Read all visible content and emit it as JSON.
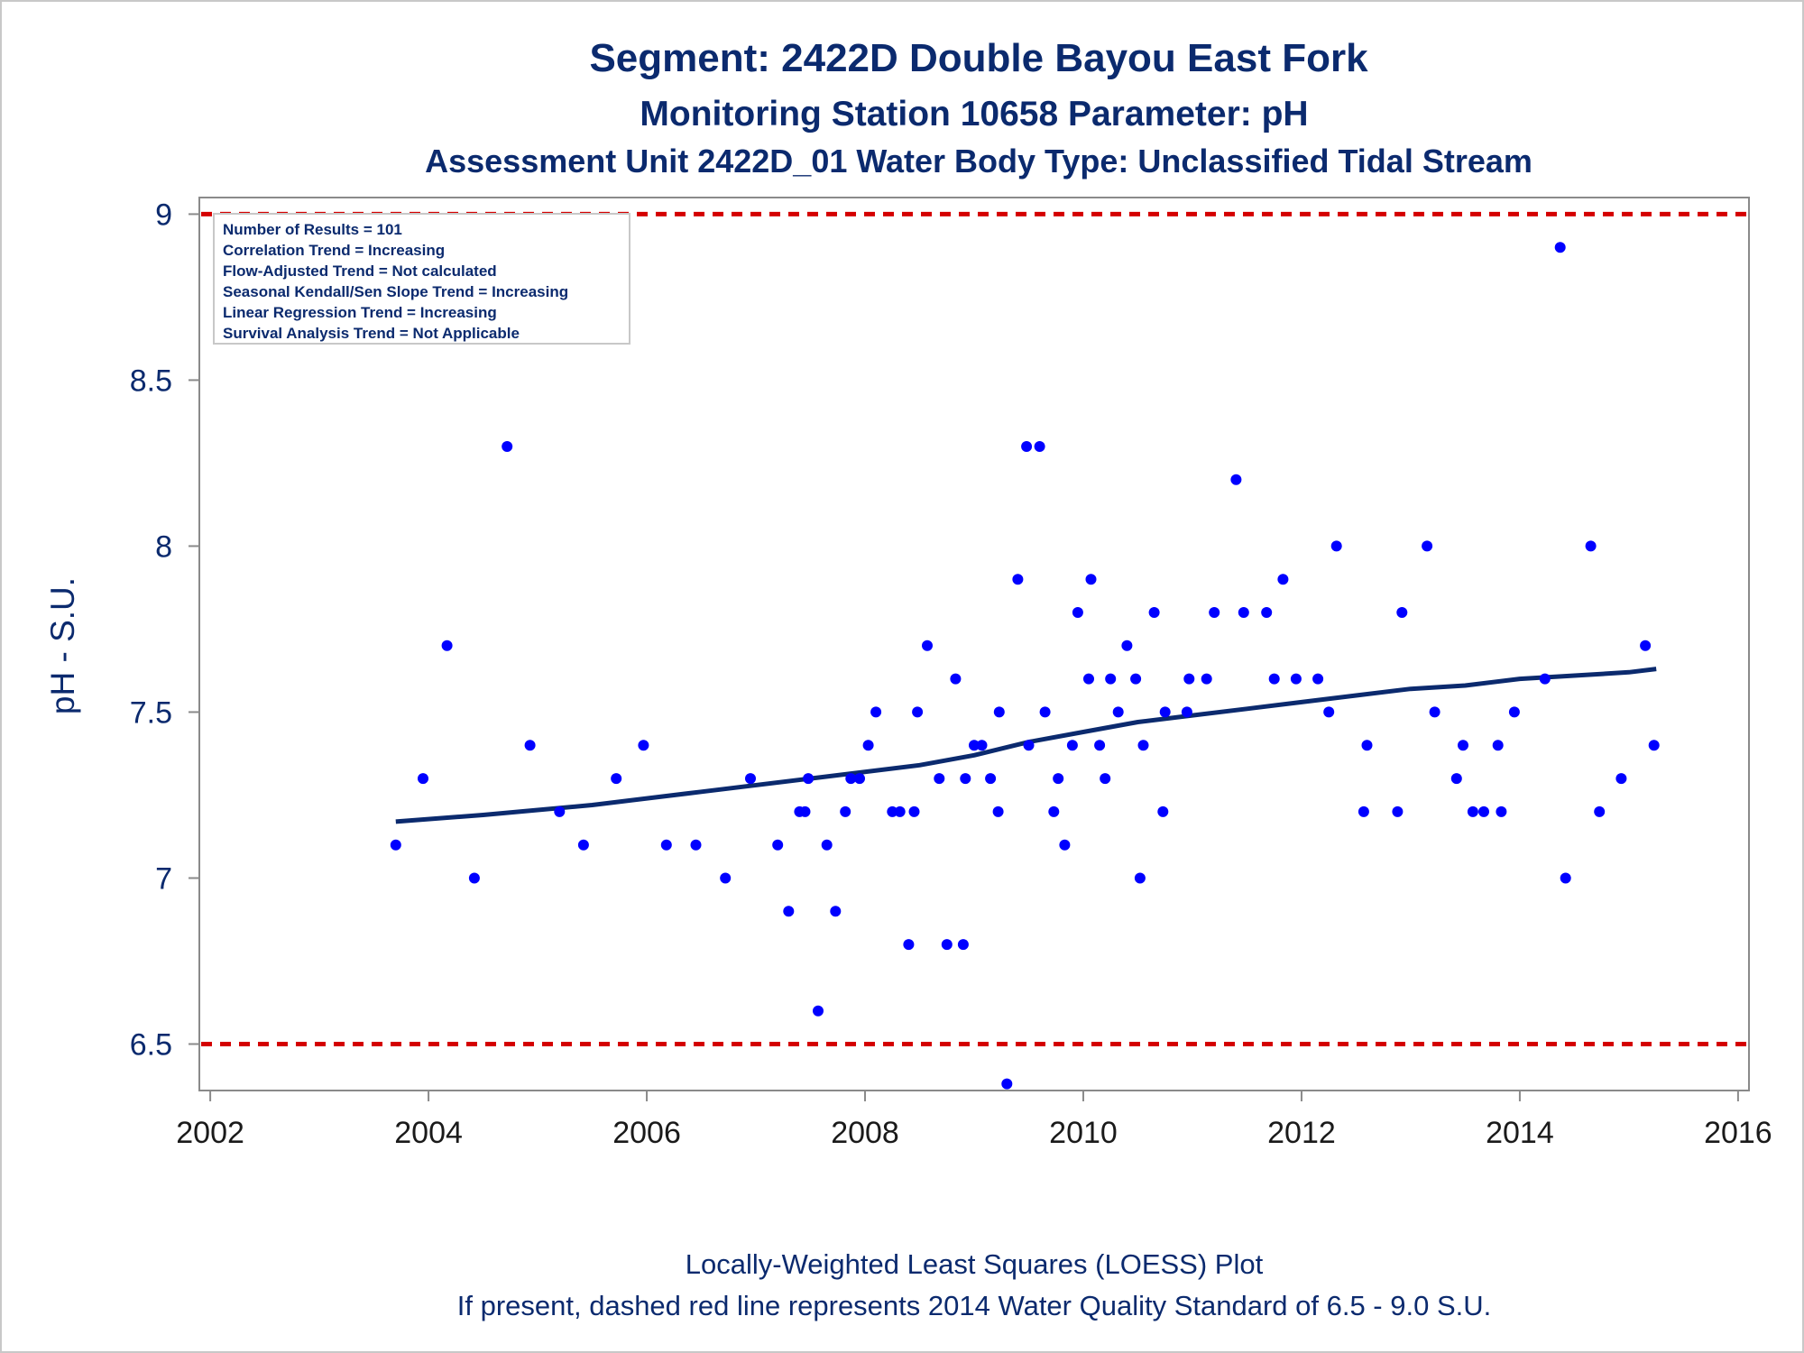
{
  "chart_data": {
    "type": "scatter",
    "title": "Segment: 2422D  Double Bayou East Fork",
    "subtitle": "Monitoring Station 10658 Parameter: pH",
    "subtitle2": "Assessment Unit 2422D_01   Water Body Type: Unclassified Tidal Stream",
    "ylabel": "pH - S.U.",
    "xlabel": "",
    "xlim": [
      2001.9,
      2016.1
    ],
    "ylim": [
      6.36,
      9.05
    ],
    "xticks": [
      2002,
      2004,
      2006,
      2008,
      2010,
      2012,
      2014,
      2016
    ],
    "yticks": [
      6.5,
      7,
      7.5,
      8,
      8.5,
      9
    ],
    "ytick_labels": [
      "6.5",
      "7",
      "7.5",
      "8",
      "8.5",
      "9"
    ],
    "grid": false,
    "stats_box": [
      "Number of Results = 101",
      "Correlation Trend = Increasing",
      "Flow-Adjusted Trend = Not calculated",
      "Seasonal Kendall/Sen Slope Trend = Increasing",
      "Linear Regression Trend = Increasing",
      "Survival Analysis Trend = Not Applicable"
    ],
    "standard_lines": [
      {
        "value": 9.0,
        "color": "#d40000"
      },
      {
        "value": 6.5,
        "color": "#d40000"
      }
    ],
    "series": [
      {
        "color": "#0000ff",
        "points": [
          [
            2003.7,
            7.1
          ],
          [
            2003.95,
            7.3
          ],
          [
            2004.17,
            7.7
          ],
          [
            2004.42,
            7.0
          ],
          [
            2004.72,
            8.3
          ],
          [
            2004.93,
            7.4
          ],
          [
            2005.2,
            7.2
          ],
          [
            2005.42,
            7.1
          ],
          [
            2005.72,
            7.3
          ],
          [
            2005.97,
            7.4
          ],
          [
            2006.18,
            7.1
          ],
          [
            2006.45,
            7.1
          ],
          [
            2006.72,
            7.0
          ],
          [
            2006.95,
            7.3
          ],
          [
            2007.2,
            7.1
          ],
          [
            2007.3,
            6.9
          ],
          [
            2007.4,
            7.2
          ],
          [
            2007.45,
            7.2
          ],
          [
            2007.48,
            7.3
          ],
          [
            2007.57,
            6.6
          ],
          [
            2007.65,
            7.1
          ],
          [
            2007.73,
            6.9
          ],
          [
            2007.82,
            7.2
          ],
          [
            2007.87,
            7.3
          ],
          [
            2007.95,
            7.3
          ],
          [
            2008.03,
            7.4
          ],
          [
            2008.1,
            7.5
          ],
          [
            2008.25,
            7.2
          ],
          [
            2008.32,
            7.2
          ],
          [
            2008.4,
            6.8
          ],
          [
            2008.45,
            7.2
          ],
          [
            2008.48,
            7.5
          ],
          [
            2008.57,
            7.7
          ],
          [
            2008.68,
            7.3
          ],
          [
            2008.75,
            6.8
          ],
          [
            2008.83,
            7.6
          ],
          [
            2008.9,
            6.8
          ],
          [
            2008.92,
            7.3
          ],
          [
            2009.0,
            7.4
          ],
          [
            2009.07,
            7.4
          ],
          [
            2009.15,
            7.3
          ],
          [
            2009.22,
            7.2
          ],
          [
            2009.23,
            7.5
          ],
          [
            2009.3,
            6.38
          ],
          [
            2009.4,
            7.9
          ],
          [
            2009.48,
            8.3
          ],
          [
            2009.5,
            7.4
          ],
          [
            2009.6,
            8.3
          ],
          [
            2009.65,
            7.5
          ],
          [
            2009.73,
            7.2
          ],
          [
            2009.77,
            7.3
          ],
          [
            2009.83,
            7.1
          ],
          [
            2009.9,
            7.4
          ],
          [
            2009.95,
            7.8
          ],
          [
            2010.05,
            7.6
          ],
          [
            2010.07,
            7.9
          ],
          [
            2010.15,
            7.4
          ],
          [
            2010.2,
            7.3
          ],
          [
            2010.25,
            7.6
          ],
          [
            2010.32,
            7.5
          ],
          [
            2010.4,
            7.7
          ],
          [
            2010.48,
            7.6
          ],
          [
            2010.52,
            7.0
          ],
          [
            2010.55,
            7.4
          ],
          [
            2010.65,
            7.8
          ],
          [
            2010.73,
            7.2
          ],
          [
            2010.75,
            7.5
          ],
          [
            2010.95,
            7.5
          ],
          [
            2010.97,
            7.6
          ],
          [
            2011.13,
            7.6
          ],
          [
            2011.2,
            7.8
          ],
          [
            2011.4,
            8.2
          ],
          [
            2011.47,
            7.8
          ],
          [
            2011.68,
            7.8
          ],
          [
            2011.75,
            7.6
          ],
          [
            2011.83,
            7.9
          ],
          [
            2011.95,
            7.6
          ],
          [
            2012.15,
            7.6
          ],
          [
            2012.25,
            7.5
          ],
          [
            2012.32,
            8.0
          ],
          [
            2012.57,
            7.2
          ],
          [
            2012.6,
            7.4
          ],
          [
            2012.88,
            7.2
          ],
          [
            2012.92,
            7.8
          ],
          [
            2013.15,
            8.0
          ],
          [
            2013.22,
            7.5
          ],
          [
            2013.42,
            7.3
          ],
          [
            2013.48,
            7.4
          ],
          [
            2013.57,
            7.2
          ],
          [
            2013.67,
            7.2
          ],
          [
            2013.8,
            7.4
          ],
          [
            2013.83,
            7.2
          ],
          [
            2013.95,
            7.5
          ],
          [
            2014.23,
            7.6
          ],
          [
            2014.37,
            8.9
          ],
          [
            2014.42,
            7.0
          ],
          [
            2014.65,
            8.0
          ],
          [
            2014.73,
            7.2
          ],
          [
            2014.93,
            7.3
          ],
          [
            2015.15,
            7.7
          ],
          [
            2015.23,
            7.4
          ]
        ]
      },
      {
        "type": "line",
        "color": "#0b2a6e",
        "points": [
          [
            2003.7,
            7.17
          ],
          [
            2004.5,
            7.19
          ],
          [
            2005.5,
            7.22
          ],
          [
            2006.5,
            7.26
          ],
          [
            2007.5,
            7.3
          ],
          [
            2008.5,
            7.34
          ],
          [
            2009.0,
            7.37
          ],
          [
            2009.5,
            7.41
          ],
          [
            2010.0,
            7.44
          ],
          [
            2010.5,
            7.47
          ],
          [
            2011.0,
            7.49
          ],
          [
            2011.5,
            7.51
          ],
          [
            2012.0,
            7.53
          ],
          [
            2012.5,
            7.55
          ],
          [
            2013.0,
            7.57
          ],
          [
            2013.5,
            7.58
          ],
          [
            2014.0,
            7.6
          ],
          [
            2014.5,
            7.61
          ],
          [
            2015.0,
            7.62
          ],
          [
            2015.25,
            7.63
          ]
        ]
      }
    ],
    "footer_lines": [
      "Locally-Weighted Least Squares (LOESS) Plot",
      "If present, dashed red line represents 2014 Water Quality Standard of 6.5 - 9.0 S.U."
    ]
  }
}
